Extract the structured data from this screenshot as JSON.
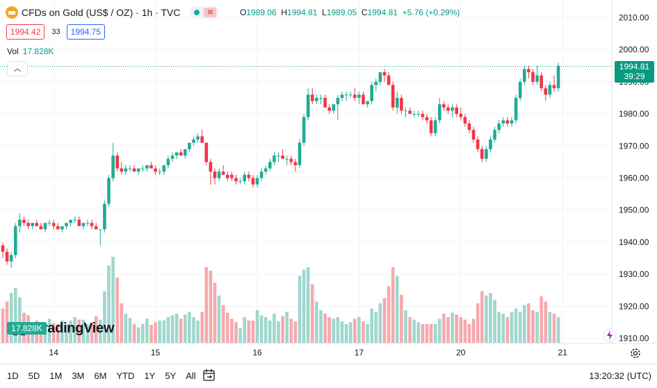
{
  "legend": {
    "title": "CFDs on Gold (US$ / OZ) · 1h · TVC",
    "open_label": "O",
    "open": "1989.06",
    "high_label": "H",
    "high": "1994.81",
    "low_label": "L",
    "low": "1989.05",
    "close_label": "C",
    "close": "1994.81",
    "change": "+5.76 (+0.29%)"
  },
  "quotes": {
    "sell": "1994.42",
    "spread": "33",
    "buy": "1994.75"
  },
  "volume": {
    "label": "Vol",
    "value": "17.828K"
  },
  "brand": "TradingView",
  "price_tag": {
    "price": "1994.81",
    "countdown": "39:29"
  },
  "volume_tag": "17.828K",
  "bottom_bar": {
    "ranges": [
      "1D",
      "5D",
      "1M",
      "3M",
      "6M",
      "YTD",
      "1Y",
      "5Y",
      "All"
    ],
    "clock": "13:20:32 (UTC)"
  },
  "colors": {
    "up": "#22ab94",
    "down": "#f23645",
    "vol_up": "#9fd7cd",
    "vol_down": "#f7a9ae",
    "grid": "#f0f3fa"
  },
  "icons": [
    "gold-logo-icon",
    "market-dot-icon",
    "collapse-chevron-icon",
    "calendar-goto-icon",
    "gear-icon",
    "lightning-icon"
  ],
  "chart_data": {
    "type": "candlestick",
    "symbol": "CFDs on Gold (US$ / OZ)",
    "interval": "1h",
    "ylim": [
      1908,
      2012
    ],
    "y_ticks": [
      1910,
      1920,
      1930,
      1940,
      1950,
      1960,
      1970,
      1980,
      1990,
      2000,
      2010
    ],
    "x_ticks": [
      {
        "label": "14",
        "index": 12
      },
      {
        "label": "15",
        "index": 36
      },
      {
        "label": "16",
        "index": 60
      },
      {
        "label": "17",
        "index": 84
      },
      {
        "label": "20",
        "index": 108
      },
      {
        "label": "21",
        "index": 132
      }
    ],
    "last_price": 1994.81,
    "volume_max": 100,
    "candles": [
      [
        1939,
        1940,
        1935,
        1937,
        40
      ],
      [
        1937,
        1938,
        1933,
        1934,
        48
      ],
      [
        1934,
        1937,
        1932,
        1936,
        58
      ],
      [
        1936,
        1946,
        1935,
        1945,
        64
      ],
      [
        1945,
        1949,
        1943,
        1947,
        53
      ],
      [
        1947,
        1948,
        1945,
        1946,
        35
      ],
      [
        1946,
        1947,
        1944,
        1945,
        32
      ],
      [
        1945,
        1946,
        1944,
        1946,
        22
      ],
      [
        1946,
        1947,
        1945,
        1945,
        26
      ],
      [
        1945,
        1946,
        1944,
        1944,
        24
      ],
      [
        1944,
        1946,
        1943,
        1946,
        22
      ],
      [
        1946,
        1947,
        1945,
        1946,
        28
      ],
      [
        1946,
        1947,
        1944,
        1945,
        23
      ],
      [
        1945,
        1946,
        1944,
        1944,
        22
      ],
      [
        1944,
        1945,
        1943,
        1945,
        26
      ],
      [
        1945,
        1946,
        1944,
        1946,
        22
      ],
      [
        1946,
        1947,
        1945,
        1947,
        26
      ],
      [
        1947,
        1948,
        1946,
        1947,
        30
      ],
      [
        1947,
        1948,
        1945,
        1945,
        27
      ],
      [
        1945,
        1946,
        1944,
        1946,
        27
      ],
      [
        1946,
        1947,
        1945,
        1946,
        22
      ],
      [
        1946,
        1947,
        1944,
        1945,
        22
      ],
      [
        1945,
        1946,
        1944,
        1944,
        31
      ],
      [
        1944,
        1944,
        1939,
        1944,
        27
      ],
      [
        1944,
        1953,
        1943,
        1952,
        60
      ],
      [
        1952,
        1961,
        1951,
        1960,
        90
      ],
      [
        1960,
        1971,
        1959,
        1967,
        100
      ],
      [
        1967,
        1968,
        1962,
        1963,
        76
      ],
      [
        1963,
        1965,
        1961,
        1962,
        46
      ],
      [
        1962,
        1964,
        1961,
        1963,
        34
      ],
      [
        1963,
        1964,
        1962,
        1963,
        29
      ],
      [
        1963,
        1964,
        1962,
        1962,
        22
      ],
      [
        1962,
        1963,
        1961,
        1963,
        18
      ],
      [
        1963,
        1964,
        1962,
        1963,
        22
      ],
      [
        1963,
        1964,
        1962,
        1964,
        28
      ],
      [
        1964,
        1965,
        1963,
        1963,
        21
      ],
      [
        1963,
        1964,
        1961,
        1962,
        24
      ],
      [
        1962,
        1963,
        1961,
        1962,
        26
      ],
      [
        1962,
        1964,
        1961,
        1964,
        26
      ],
      [
        1964,
        1967,
        1963,
        1966,
        30
      ],
      [
        1966,
        1968,
        1965,
        1967,
        32
      ],
      [
        1967,
        1968,
        1966,
        1968,
        34
      ],
      [
        1968,
        1969,
        1967,
        1967,
        28
      ],
      [
        1967,
        1969,
        1966,
        1969,
        33
      ],
      [
        1969,
        1971,
        1968,
        1971,
        36
      ],
      [
        1971,
        1973,
        1970,
        1972,
        30
      ],
      [
        1972,
        1974,
        1971,
        1973,
        26
      ],
      [
        1973,
        1975,
        1972,
        1971,
        36
      ],
      [
        1971,
        1971,
        1964,
        1965,
        88
      ],
      [
        1965,
        1966,
        1958,
        1962,
        84
      ],
      [
        1962,
        1963,
        1958,
        1960,
        70
      ],
      [
        1960,
        1963,
        1959,
        1962,
        55
      ],
      [
        1962,
        1964,
        1961,
        1961,
        44
      ],
      [
        1961,
        1962,
        1959,
        1960,
        35
      ],
      [
        1961,
        1962,
        1959,
        1960,
        28
      ],
      [
        1960,
        1961,
        1958,
        1959,
        24
      ],
      [
        1959,
        1960,
        1958,
        1959,
        17
      ],
      [
        1959,
        1962,
        1958,
        1961,
        30
      ],
      [
        1961,
        1962,
        1959,
        1960,
        26
      ],
      [
        1960,
        1961,
        1957,
        1958,
        26
      ],
      [
        1958,
        1961,
        1957,
        1960,
        38
      ],
      [
        1960,
        1963,
        1959,
        1962,
        32
      ],
      [
        1962,
        1964,
        1961,
        1963,
        30
      ],
      [
        1963,
        1966,
        1962,
        1965,
        26
      ],
      [
        1965,
        1968,
        1964,
        1967,
        34
      ],
      [
        1967,
        1968,
        1965,
        1967,
        25
      ],
      [
        1967,
        1969,
        1966,
        1966,
        31
      ],
      [
        1966,
        1967,
        1964,
        1966,
        36
      ],
      [
        1966,
        1967,
        1964,
        1965,
        28
      ],
      [
        1965,
        1966,
        1962,
        1964,
        25
      ],
      [
        1964,
        1972,
        1963,
        1971,
        78
      ],
      [
        1971,
        1980,
        1970,
        1979,
        85
      ],
      [
        1979,
        1988,
        1978,
        1986,
        88
      ],
      [
        1986,
        1988,
        1983,
        1984,
        68
      ],
      [
        1984,
        1986,
        1983,
        1985,
        48
      ],
      [
        1985,
        1986,
        1983,
        1985,
        38
      ],
      [
        1985,
        1986,
        1982,
        1982,
        34
      ],
      [
        1982,
        1983,
        1980,
        1981,
        30
      ],
      [
        1981,
        1983,
        1980,
        1983,
        28
      ],
      [
        1983,
        1986,
        1978,
        1985,
        30
      ],
      [
        1985,
        1987,
        1984,
        1986,
        25
      ],
      [
        1986,
        1987,
        1984,
        1986,
        22
      ],
      [
        1986,
        1987,
        1985,
        1986,
        24
      ],
      [
        1986,
        1988,
        1984,
        1985,
        28
      ],
      [
        1985,
        1987,
        1983,
        1986,
        30
      ],
      [
        1986,
        1987,
        1983,
        1983,
        25
      ],
      [
        1983,
        1984,
        1982,
        1984,
        22
      ],
      [
        1984,
        1990,
        1983,
        1989,
        40
      ],
      [
        1989,
        1991,
        1987,
        1990,
        36
      ],
      [
        1990,
        1993,
        1989,
        1993,
        46
      ],
      [
        1993,
        1994,
        1990,
        1992,
        52
      ],
      [
        1992,
        1993,
        1989,
        1989,
        66
      ],
      [
        1989,
        1990,
        1981,
        1982,
        88
      ],
      [
        1982,
        1987,
        1980,
        1985,
        78
      ],
      [
        1985,
        1986,
        1980,
        1981,
        56
      ],
      [
        1981,
        1982,
        1979,
        1981,
        38
      ],
      [
        1981,
        1982,
        1980,
        1980,
        30
      ],
      [
        1980,
        1981,
        1979,
        1980,
        27
      ],
      [
        1980,
        1981,
        1979,
        1980,
        24
      ],
      [
        1980,
        1981,
        1978,
        1979,
        22
      ],
      [
        1979,
        1980,
        1977,
        1978,
        22
      ],
      [
        1978,
        1979,
        1973,
        1974,
        22
      ],
      [
        1974,
        1979,
        1973,
        1978,
        22
      ],
      [
        1978,
        1985,
        1977,
        1983,
        28
      ],
      [
        1983,
        1984,
        1981,
        1982,
        34
      ],
      [
        1982,
        1983,
        1980,
        1981,
        30
      ],
      [
        1981,
        1983,
        1979,
        1982,
        35
      ],
      [
        1982,
        1983,
        1979,
        1980,
        33
      ],
      [
        1980,
        1982,
        1978,
        1979,
        30
      ],
      [
        1979,
        1980,
        1976,
        1977,
        27
      ],
      [
        1977,
        1978,
        1974,
        1975,
        22
      ],
      [
        1975,
        1976,
        1971,
        1972,
        28
      ],
      [
        1972,
        1973,
        1968,
        1969,
        46
      ],
      [
        1969,
        1970,
        1965,
        1966,
        60
      ],
      [
        1966,
        1970,
        1965,
        1969,
        55
      ],
      [
        1969,
        1973,
        1968,
        1972,
        58
      ],
      [
        1972,
        1976,
        1971,
        1975,
        50
      ],
      [
        1975,
        1978,
        1974,
        1977,
        36
      ],
      [
        1977,
        1979,
        1976,
        1978,
        34
      ],
      [
        1978,
        1979,
        1976,
        1977,
        30
      ],
      [
        1977,
        1979,
        1976,
        1978,
        36
      ],
      [
        1978,
        1986,
        1977,
        1985,
        40
      ],
      [
        1985,
        1991,
        1984,
        1990,
        36
      ],
      [
        1990,
        1995,
        1989,
        1994,
        44
      ],
      [
        1994,
        1995,
        1991,
        1993,
        46
      ],
      [
        1993,
        1994,
        1989,
        1990,
        38
      ],
      [
        1990,
        1995,
        1989,
        1992,
        36
      ],
      [
        1992,
        1993,
        1987,
        1988,
        54
      ],
      [
        1988,
        1989,
        1984,
        1986,
        48
      ],
      [
        1986,
        1990,
        1985,
        1989,
        36
      ],
      [
        1989,
        1992,
        1987,
        1988,
        34
      ],
      [
        1988,
        1996,
        1987,
        1995,
        30
      ]
    ]
  }
}
